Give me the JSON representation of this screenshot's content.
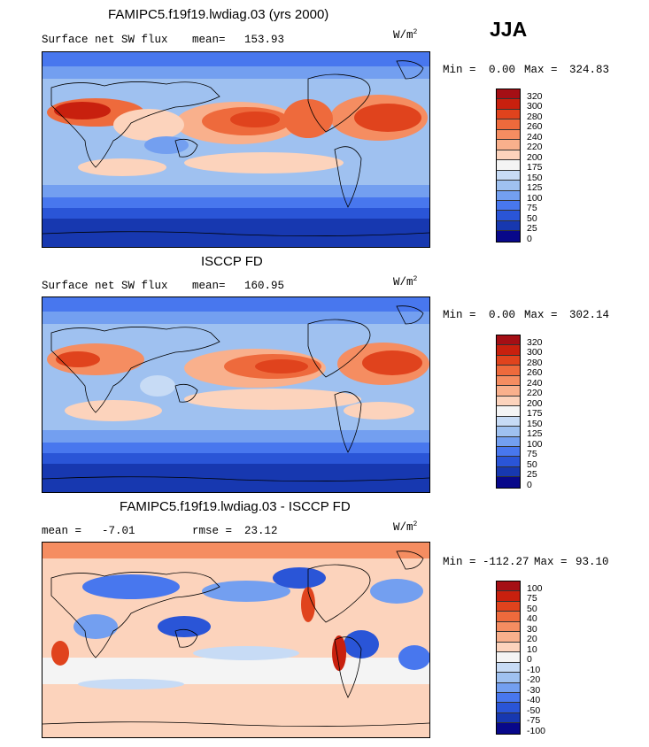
{
  "season": "JJA",
  "units": "W/m",
  "units_exp": "2",
  "panels": [
    {
      "title": "FAMIPC5.f19f19.lwdiag.03 (yrs 2000)",
      "left_label": "Surface net SW flux",
      "stat_label": "mean=",
      "stat_value": "153.93",
      "min_label": "Min =",
      "min_value": "0.00",
      "max_label": "Max =",
      "max_value": "324.83",
      "levels": [
        "320",
        "300",
        "280",
        "260",
        "240",
        "220",
        "200",
        "175",
        "150",
        "125",
        "100",
        "75",
        "50",
        "25",
        "0"
      ],
      "colors": [
        "#a50f15",
        "#c8200e",
        "#e0431d",
        "#ee6a3c",
        "#f58d61",
        "#f9b08c",
        "#fcd3bc",
        "#f4f4f4",
        "#c7dbf5",
        "#9fc1f0",
        "#739ff0",
        "#4877ee",
        "#2a55d7",
        "#1738b0",
        "#08088a"
      ]
    },
    {
      "title": "ISCCP FD",
      "left_label": "Surface net SW flux",
      "stat_label": "mean=",
      "stat_value": "160.95",
      "min_label": "Min =",
      "min_value": "0.00",
      "max_label": "Max =",
      "max_value": "302.14",
      "levels": [
        "320",
        "300",
        "280",
        "260",
        "240",
        "220",
        "200",
        "175",
        "150",
        "125",
        "100",
        "75",
        "50",
        "25",
        "0"
      ],
      "colors": [
        "#a50f15",
        "#c8200e",
        "#e0431d",
        "#ee6a3c",
        "#f58d61",
        "#f9b08c",
        "#fcd3bc",
        "#f4f4f4",
        "#c7dbf5",
        "#9fc1f0",
        "#739ff0",
        "#4877ee",
        "#2a55d7",
        "#1738b0",
        "#08088a"
      ]
    },
    {
      "title": "FAMIPC5.f19f19.lwdiag.03 - ISCCP FD",
      "left_label": "mean =",
      "left_value": "-7.01",
      "stat_label": "rmse =",
      "stat_value": "23.12",
      "min_label": "Min =",
      "min_value": "-112.27",
      "max_label": "Max =",
      "max_value": "93.10",
      "levels": [
        "100",
        "75",
        "50",
        "40",
        "30",
        "20",
        "10",
        "0",
        "-10",
        "-20",
        "-30",
        "-40",
        "-50",
        "-75",
        "-100"
      ],
      "colors": [
        "#a50f15",
        "#c8200e",
        "#e0431d",
        "#ee6a3c",
        "#f58d61",
        "#f9b08c",
        "#fcd3bc",
        "#f4f4f4",
        "#c7dbf5",
        "#9fc1f0",
        "#739ff0",
        "#4877ee",
        "#2a55d7",
        "#1738b0",
        "#08088a"
      ]
    }
  ]
}
